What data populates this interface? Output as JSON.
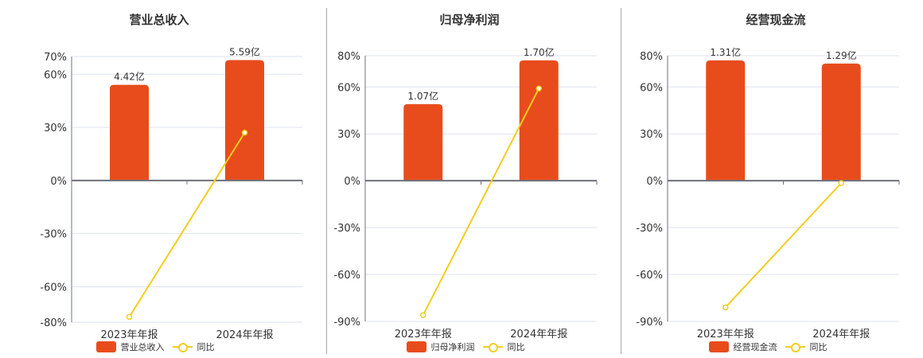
{
  "colors": {
    "bar": "#e84c1c",
    "line": "#f3cd1f",
    "grid": "#dfe3f0",
    "axis": "#6e7079"
  },
  "chart_data": [
    {
      "type": "bar+line",
      "title": "营业总收入",
      "categories": [
        "2023年年报",
        "2024年年报"
      ],
      "series": [
        {
          "name": "营业总收入",
          "type": "bar",
          "values_pct_axis": [
            54,
            68
          ],
          "labels": [
            "4.42亿",
            "5.59亿"
          ]
        },
        {
          "name": "同比",
          "type": "line",
          "values": [
            -77,
            27
          ]
        }
      ],
      "yticks": [
        70,
        60,
        30,
        0,
        -30,
        -60,
        -80
      ],
      "ytick_labels": [
        "70%",
        "60%",
        "30%",
        "0%",
        "-30%",
        "-60%",
        "-80%"
      ],
      "ylim": [
        -80,
        70
      ],
      "legend": [
        "营业总收入",
        "同比"
      ],
      "grid": true
    },
    {
      "type": "bar+line",
      "title": "归母净利润",
      "categories": [
        "2023年年报",
        "2024年年报"
      ],
      "series": [
        {
          "name": "归母净利润",
          "type": "bar",
          "values_pct_axis": [
            49,
            77
          ],
          "labels": [
            "1.07亿",
            "1.70亿"
          ]
        },
        {
          "name": "同比",
          "type": "line",
          "values": [
            -86,
            59
          ]
        }
      ],
      "yticks": [
        80,
        60,
        30,
        0,
        -30,
        -60,
        -90
      ],
      "ytick_labels": [
        "80%",
        "60%",
        "30%",
        "0%",
        "-30%",
        "-60%",
        "-90%"
      ],
      "ylim": [
        -90,
        80
      ],
      "legend": [
        "归母净利润",
        "同比"
      ],
      "grid": true
    },
    {
      "type": "bar+line",
      "title": "经营现金流",
      "categories": [
        "2023年年报",
        "2024年年报"
      ],
      "series": [
        {
          "name": "经营现金流",
          "type": "bar",
          "values_pct_axis": [
            77,
            75
          ],
          "labels": [
            "1.31亿",
            "1.29亿"
          ]
        },
        {
          "name": "同比",
          "type": "line",
          "values": [
            -81,
            -1.5
          ]
        }
      ],
      "yticks": [
        80,
        60,
        30,
        0,
        -30,
        -60,
        -90
      ],
      "ytick_labels": [
        "80%",
        "60%",
        "30%",
        "0%",
        "-30%",
        "-60%",
        "-90%"
      ],
      "ylim": [
        -90,
        80
      ],
      "legend": [
        "经营现金流",
        "同比"
      ],
      "grid": true
    }
  ]
}
